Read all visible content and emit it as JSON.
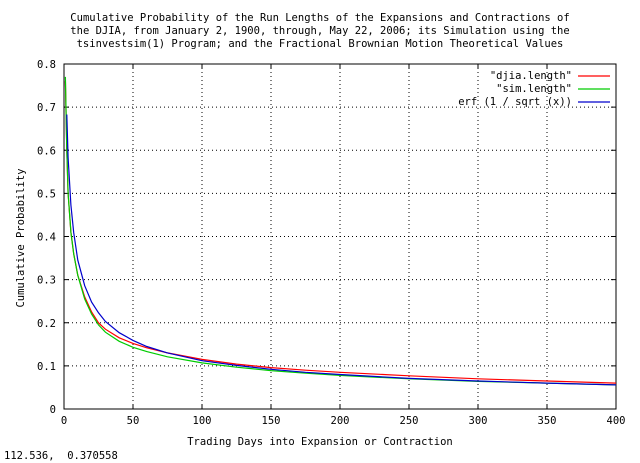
{
  "chart_data": {
    "type": "line",
    "title_lines": [
      "Cumulative Probability of the Run Lengths of the Expansions and Contractions of",
      "the DJIA, from January 2, 1900, through, May 22, 2006; its Simulation using the",
      "tsinvestsim(1) Program; and the Fractional Brownian Motion Theoretical Values"
    ],
    "xlabel": "Trading Days into Expansion or Contraction",
    "ylabel": "Cumulative Probability",
    "xlim": [
      0,
      400
    ],
    "ylim": [
      0,
      0.8
    ],
    "xticks": [
      "0",
      "50",
      "100",
      "150",
      "200",
      "250",
      "300",
      "350",
      "400"
    ],
    "yticks": [
      "0",
      "0.1",
      "0.2",
      "0.3",
      "0.4",
      "0.5",
      "0.6",
      "0.7",
      "0.8"
    ],
    "grid": "dotted",
    "legend_position": "top-right",
    "series": [
      {
        "name": "\"djia.length\"",
        "color": "#ff0000",
        "x": [
          1,
          2,
          3,
          5,
          7,
          10,
          15,
          20,
          25,
          30,
          40,
          50,
          60,
          75,
          100,
          125,
          150,
          175,
          200,
          250,
          300,
          350,
          400
        ],
        "y": [
          0.76,
          0.6,
          0.5,
          0.41,
          0.36,
          0.31,
          0.26,
          0.225,
          0.2,
          0.185,
          0.165,
          0.152,
          0.142,
          0.13,
          0.115,
          0.104,
          0.096,
          0.09,
          0.085,
          0.077,
          0.07,
          0.065,
          0.06
        ]
      },
      {
        "name": "\"sim.length\"",
        "color": "#00cc00",
        "x": [
          1,
          2,
          3,
          5,
          7,
          10,
          15,
          20,
          25,
          30,
          40,
          50,
          60,
          75,
          100,
          125,
          150,
          175,
          200,
          250,
          300,
          350,
          400
        ],
        "y": [
          0.77,
          0.6,
          0.5,
          0.41,
          0.36,
          0.31,
          0.255,
          0.22,
          0.195,
          0.178,
          0.157,
          0.143,
          0.133,
          0.121,
          0.107,
          0.097,
          0.089,
          0.083,
          0.078,
          0.07,
          0.064,
          0.06,
          0.056
        ]
      },
      {
        "name": "erf (1 / sqrt (x))",
        "color": "#0000cc",
        "x": [
          2,
          3,
          5,
          7,
          10,
          15,
          20,
          25,
          30,
          40,
          50,
          60,
          75,
          100,
          125,
          150,
          175,
          200,
          250,
          300,
          350,
          400
        ],
        "y": [
          0.683,
          0.583,
          0.473,
          0.409,
          0.345,
          0.286,
          0.248,
          0.223,
          0.203,
          0.177,
          0.159,
          0.145,
          0.13,
          0.112,
          0.101,
          0.092,
          0.085,
          0.08,
          0.071,
          0.065,
          0.06,
          0.056
        ]
      }
    ]
  },
  "status_text": "112.536,  0.370558"
}
